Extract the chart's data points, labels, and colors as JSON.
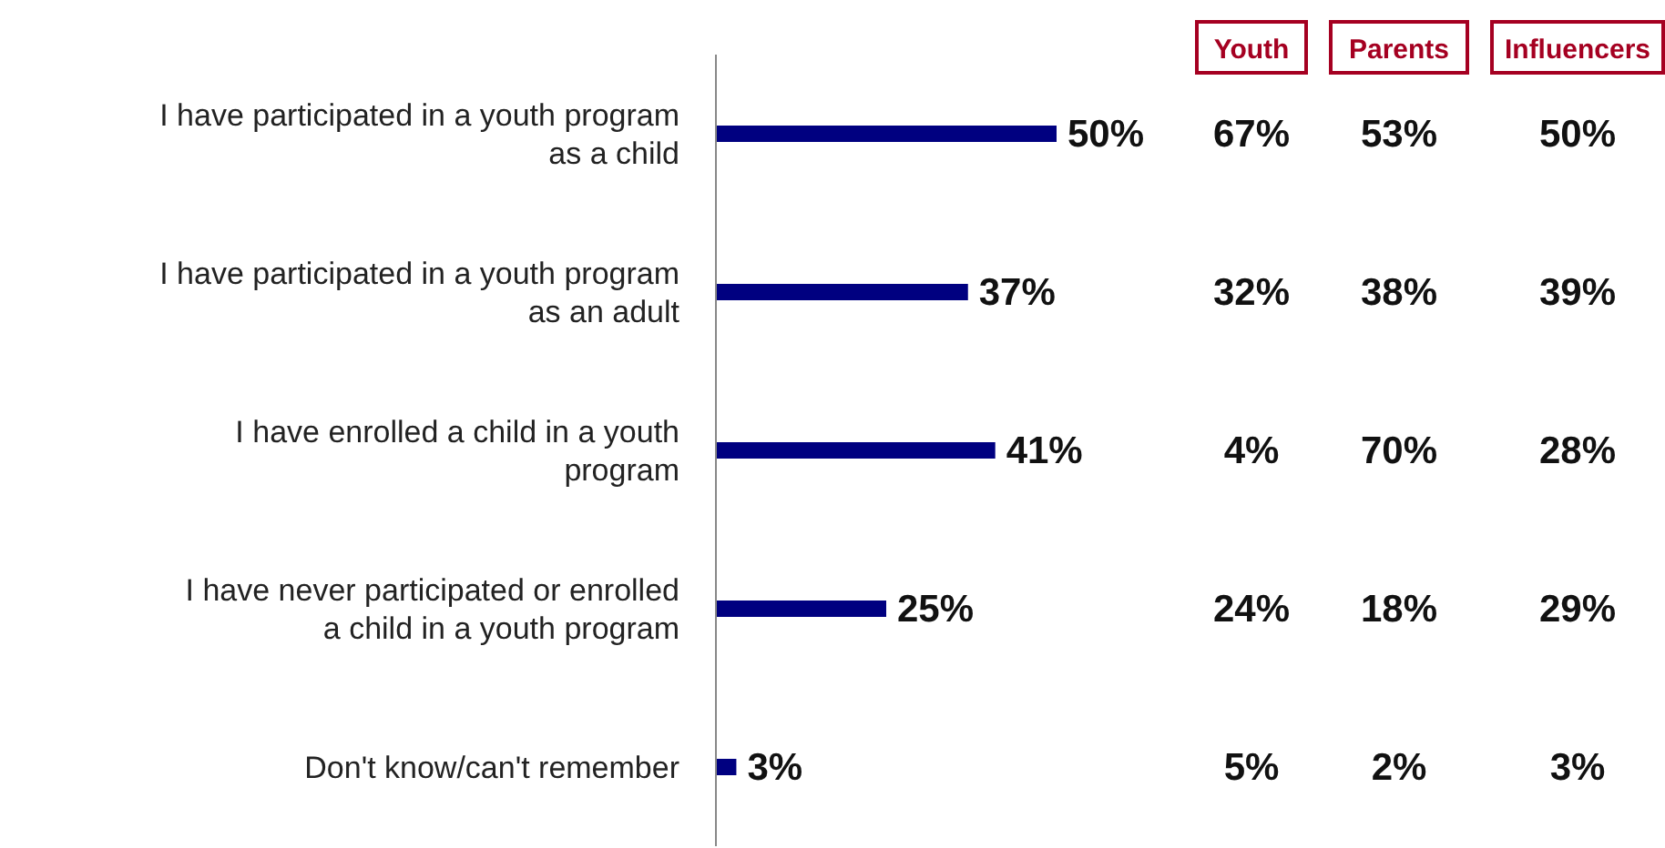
{
  "chart_data": [
    {
      "type": "bar",
      "orientation": "horizontal",
      "tick_labels": "y",
      "categories": [
        "I have participated in a youth program as a child",
        "I have participated in a youth program as an adult",
        "I have enrolled a child in a youth program",
        "I have never participated or enrolled a child in a youth program",
        "Don't know/can't remember"
      ],
      "series": [
        {
          "color": "#000080",
          "values": [
            50,
            37,
            41,
            25,
            3
          ],
          "value_labels": [
            "50%",
            "37%",
            "41%",
            "25%",
            "3%"
          ]
        }
      ]
    },
    {
      "type": "heatmap",
      "categories": [
        "Youth",
        "Parents",
        "Influencers"
      ],
      "y_categories": [
        null,
        null,
        null,
        null,
        null
      ],
      "cells": [
        [
          67,
          53,
          50
        ],
        [
          32,
          38,
          39
        ],
        [
          4,
          70,
          28
        ],
        [
          24,
          18,
          29
        ],
        [
          5,
          2,
          3
        ]
      ],
      "cell_labels": [
        [
          "67%",
          "53%",
          "50%"
        ],
        [
          "32%",
          "38%",
          "39%"
        ],
        [
          "4%",
          "70%",
          "28%"
        ],
        [
          "24%",
          "18%",
          "29%"
        ],
        [
          "5%",
          "2%",
          "3%"
        ]
      ]
    }
  ]
}
